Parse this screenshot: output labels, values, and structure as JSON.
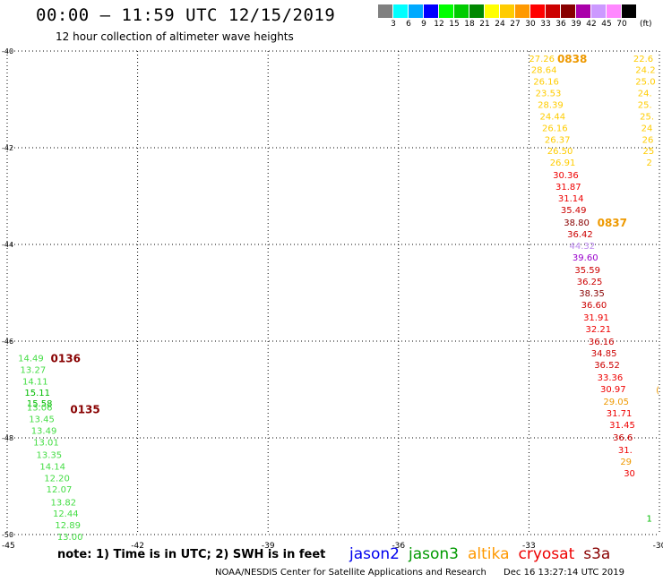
{
  "header": {
    "title": "00:00 – 11:59 UTC 12/15/2019",
    "subtitle": "12 hour collection of altimeter wave heights"
  },
  "legend": {
    "unit": "(ft)",
    "items": [
      {
        "label": "3",
        "color": "#808080"
      },
      {
        "label": "6",
        "color": "#00ffff"
      },
      {
        "label": "9",
        "color": "#00aaff"
      },
      {
        "label": "12",
        "color": "#0000ff"
      },
      {
        "label": "15",
        "color": "#00ff00"
      },
      {
        "label": "18",
        "color": "#00cc00"
      },
      {
        "label": "21",
        "color": "#008800"
      },
      {
        "label": "24",
        "color": "#ffff00"
      },
      {
        "label": "27",
        "color": "#ffcc00"
      },
      {
        "label": "30",
        "color": "#ff9900"
      },
      {
        "label": "33",
        "color": "#ff0000"
      },
      {
        "label": "36",
        "color": "#cc0000"
      },
      {
        "label": "39",
        "color": "#880000"
      },
      {
        "label": "42",
        "color": "#aa00aa"
      },
      {
        "label": "45",
        "color": "#cc99ff"
      },
      {
        "label": "70",
        "color": "#ff88ff"
      },
      {
        "label": "",
        "color": "#000000"
      }
    ]
  },
  "map": {
    "lon_range": [
      -45,
      -30
    ],
    "lat_range": [
      -50,
      -40
    ],
    "lon_ticks": [
      "-42",
      "-39",
      "-36",
      "-33",
      "-30"
    ],
    "corner_lon_label": "-45",
    "lat_ticks": [
      "-40",
      "-42",
      "-44",
      "-46",
      "-48",
      "-50"
    ]
  },
  "colors": {
    "c15": "#44dd44",
    "c15dark": "#00bb00",
    "c24": "#ffcc00",
    "c27": "#ee9900",
    "c30": "#ff7700",
    "c33": "#ee0000",
    "c36": "#cc0000",
    "c39": "#880000",
    "c42": "#9900cc",
    "c45": "#bb88ee",
    "time": "#880000",
    "time_altika": "#ee9900"
  },
  "tracks": [
    {
      "name": "track-0838",
      "points": [
        {
          "v": "27.26",
          "lon": -33.0,
          "lat": -40.15,
          "c": "c24"
        },
        {
          "v": "28.64",
          "lon": -32.95,
          "lat": -40.38,
          "c": "c24"
        },
        {
          "v": "26.16",
          "lon": -32.9,
          "lat": -40.62,
          "c": "c24"
        },
        {
          "v": "23.53",
          "lon": -32.85,
          "lat": -40.86,
          "c": "c24"
        },
        {
          "v": "28.39",
          "lon": -32.8,
          "lat": -41.1,
          "c": "c24"
        },
        {
          "v": "24.44",
          "lon": -32.75,
          "lat": -41.34,
          "c": "c24"
        },
        {
          "v": "26.16",
          "lon": -32.7,
          "lat": -41.58,
          "c": "c24"
        },
        {
          "v": "26.37",
          "lon": -32.64,
          "lat": -41.82,
          "c": "c24"
        },
        {
          "v": "26.50",
          "lon": -32.58,
          "lat": -42.06,
          "c": "c24"
        },
        {
          "v": "26.91",
          "lon": -32.52,
          "lat": -42.3,
          "c": "c24"
        },
        {
          "v": "30.36",
          "lon": -32.45,
          "lat": -42.56,
          "c": "c33"
        },
        {
          "v": "31.87",
          "lon": -32.39,
          "lat": -42.8,
          "c": "c33"
        },
        {
          "v": "31.14",
          "lon": -32.33,
          "lat": -43.04,
          "c": "c33"
        },
        {
          "v": "35.49",
          "lon": -32.27,
          "lat": -43.28,
          "c": "c36"
        },
        {
          "v": "38.80",
          "lon": -32.2,
          "lat": -43.54,
          "c": "c39"
        },
        {
          "v": "36.42",
          "lon": -32.12,
          "lat": -43.78,
          "c": "c36"
        },
        {
          "v": "44.32",
          "lon": -32.07,
          "lat": -44.02,
          "c": "c45"
        },
        {
          "v": "39.60",
          "lon": -32.0,
          "lat": -44.26,
          "c": "c42"
        },
        {
          "v": "35.59",
          "lon": -31.95,
          "lat": -44.52,
          "c": "c36"
        },
        {
          "v": "36.25",
          "lon": -31.9,
          "lat": -44.76,
          "c": "c36"
        },
        {
          "v": "38.35",
          "lon": -31.85,
          "lat": -45.0,
          "c": "c39"
        },
        {
          "v": "36.60",
          "lon": -31.8,
          "lat": -45.24,
          "c": "c36"
        },
        {
          "v": "31.91",
          "lon": -31.75,
          "lat": -45.5,
          "c": "c33"
        },
        {
          "v": "32.21",
          "lon": -31.7,
          "lat": -45.74,
          "c": "c33"
        },
        {
          "v": "36.16",
          "lon": -31.63,
          "lat": -46.0,
          "c": "c36"
        },
        {
          "v": "34.85",
          "lon": -31.57,
          "lat": -46.24,
          "c": "c36"
        },
        {
          "v": "36.52",
          "lon": -31.5,
          "lat": -46.48,
          "c": "c36"
        },
        {
          "v": "33.36",
          "lon": -31.43,
          "lat": -46.74,
          "c": "c33"
        },
        {
          "v": "30.97",
          "lon": -31.36,
          "lat": -46.98,
          "c": "c33"
        },
        {
          "v": "29.05",
          "lon": -31.29,
          "lat": -47.24,
          "c": "c27"
        },
        {
          "v": "31.71",
          "lon": -31.22,
          "lat": -47.48,
          "c": "c33"
        },
        {
          "v": "31.45",
          "lon": -31.15,
          "lat": -47.72,
          "c": "c33"
        },
        {
          "v": "36.6",
          "lon": -31.07,
          "lat": -47.98,
          "c": "c36"
        },
        {
          "v": "31.",
          "lon": -30.95,
          "lat": -48.24,
          "c": "c33"
        },
        {
          "v": "29",
          "lon": -30.9,
          "lat": -48.48,
          "c": "c27"
        },
        {
          "v": "30",
          "lon": -30.82,
          "lat": -48.72,
          "c": "c33"
        }
      ]
    },
    {
      "name": "track-right-edge",
      "points": [
        {
          "v": "22.6",
          "lon": -30.6,
          "lat": -40.15,
          "c": "c24"
        },
        {
          "v": "24.2",
          "lon": -30.55,
          "lat": -40.38,
          "c": "c24"
        },
        {
          "v": "25.0",
          "lon": -30.55,
          "lat": -40.62,
          "c": "c24"
        },
        {
          "v": "24.",
          "lon": -30.5,
          "lat": -40.86,
          "c": "c24"
        },
        {
          "v": "25.",
          "lon": -30.5,
          "lat": -41.1,
          "c": "c24"
        },
        {
          "v": "25.",
          "lon": -30.45,
          "lat": -41.34,
          "c": "c24"
        },
        {
          "v": "24",
          "lon": -30.42,
          "lat": -41.58,
          "c": "c24"
        },
        {
          "v": "26",
          "lon": -30.4,
          "lat": -41.82,
          "c": "c24"
        },
        {
          "v": "25",
          "lon": -30.38,
          "lat": -42.06,
          "c": "c24"
        },
        {
          "v": "2",
          "lon": -30.3,
          "lat": -42.3,
          "c": "c24"
        },
        {
          "v": "1",
          "lon": -30.3,
          "lat": -49.66,
          "c": "c15dark"
        },
        {
          "v": "(",
          "lon": -30.08,
          "lat": -47.0,
          "c": "c27"
        }
      ]
    },
    {
      "name": "track-0136",
      "points": [
        {
          "v": "14.49",
          "lon": -44.75,
          "lat": -46.34,
          "c": "c15"
        },
        {
          "v": "13.27",
          "lon": -44.7,
          "lat": -46.58,
          "c": "c15"
        },
        {
          "v": "14.11",
          "lon": -44.65,
          "lat": -46.82,
          "c": "c15"
        },
        {
          "v": "15.11",
          "lon": -44.6,
          "lat": -47.06,
          "c": "c15dark"
        },
        {
          "v": "15.58",
          "lon": -44.55,
          "lat": -47.28,
          "c": "c15dark"
        },
        {
          "v": "13.06",
          "lon": -44.55,
          "lat": -47.36,
          "c": "c15"
        },
        {
          "v": "13.45",
          "lon": -44.5,
          "lat": -47.6,
          "c": "c15"
        },
        {
          "v": "13.49",
          "lon": -44.45,
          "lat": -47.84,
          "c": "c15"
        },
        {
          "v": "13.01",
          "lon": -44.4,
          "lat": -48.08,
          "c": "c15"
        },
        {
          "v": "13.35",
          "lon": -44.33,
          "lat": -48.34,
          "c": "c15"
        },
        {
          "v": "14.14",
          "lon": -44.25,
          "lat": -48.58,
          "c": "c15"
        },
        {
          "v": "12.20",
          "lon": -44.15,
          "lat": -48.82,
          "c": "c15"
        },
        {
          "v": "12.07",
          "lon": -44.1,
          "lat": -49.06,
          "c": "c15"
        },
        {
          "v": "13.82",
          "lon": -44.0,
          "lat": -49.32,
          "c": "c15"
        },
        {
          "v": "12.44",
          "lon": -43.95,
          "lat": -49.56,
          "c": "c15"
        },
        {
          "v": "12.89",
          "lon": -43.9,
          "lat": -49.8,
          "c": "c15"
        },
        {
          "v": "13.00",
          "lon": -43.85,
          "lat": -50.04,
          "c": "c15"
        }
      ]
    }
  ],
  "time_labels": [
    {
      "v": "0838",
      "lon": -32.35,
      "lat": -40.15,
      "c": "time_altika"
    },
    {
      "v": "0837",
      "lon": -31.43,
      "lat": -43.54,
      "c": "time_altika"
    },
    {
      "v": "0136",
      "lon": -44.0,
      "lat": -46.34,
      "c": "time"
    },
    {
      "v": "0135",
      "lon": -43.55,
      "lat": -47.4,
      "c": "time"
    }
  ],
  "note": "note:  1) Time is in UTC;  2) SWH is in feet",
  "satellites": [
    {
      "name": "jason2",
      "color": "#0000ee"
    },
    {
      "name": "jason3",
      "color": "#009900"
    },
    {
      "name": "altika",
      "color": "#ff9900"
    },
    {
      "name": "cryosat",
      "color": "#ee0000"
    },
    {
      "name": "s3a",
      "color": "#880000"
    }
  ],
  "footer": {
    "credit": "NOAA/NESDIS Center for Satellite Applications and Research",
    "timestamp": "Dec 16 13:27:14 UTC 2019"
  }
}
